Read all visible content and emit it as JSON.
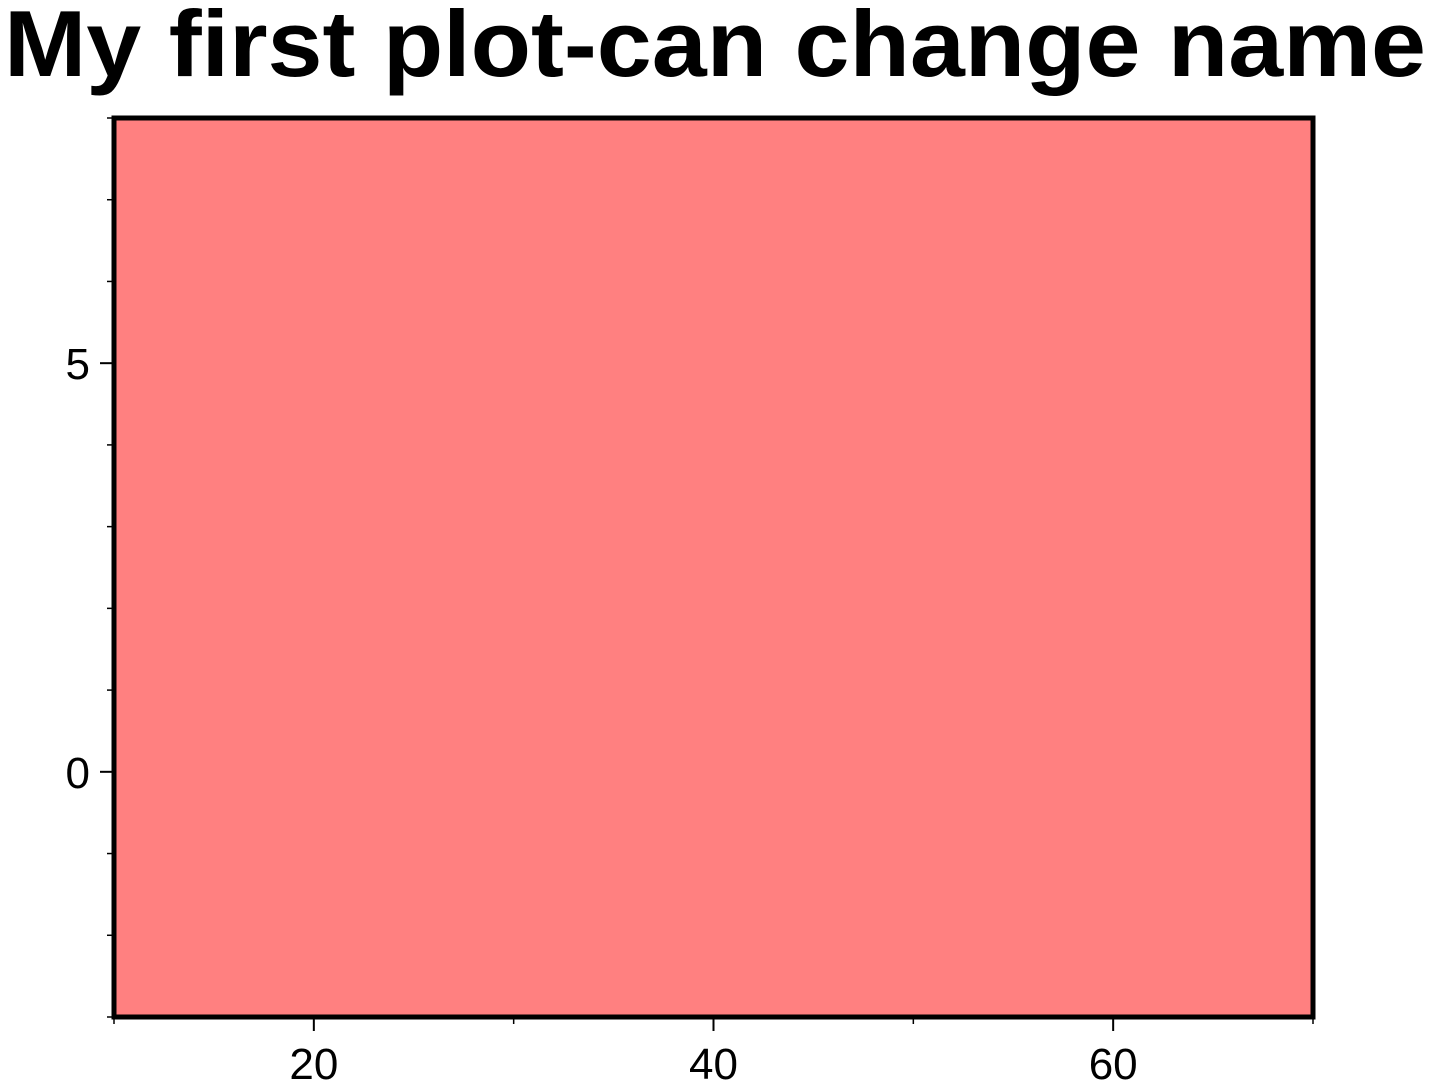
{
  "chart_data": {
    "type": "area",
    "title": "My first plot-can change name",
    "xlabel": "",
    "ylabel": "",
    "xlim": [
      10,
      70
    ],
    "ylim": [
      -3,
      8
    ],
    "x_ticks": [
      20,
      40,
      60
    ],
    "x_minor_ticks": [
      10,
      30,
      50,
      70
    ],
    "y_ticks": [
      0,
      5
    ],
    "y_minor_ticks": [
      -3,
      -2,
      -1,
      1,
      2,
      3,
      4,
      6,
      7,
      8
    ],
    "fill_color": "#ff8080",
    "frame_color": "#000000",
    "grid": false,
    "legend": "none"
  }
}
